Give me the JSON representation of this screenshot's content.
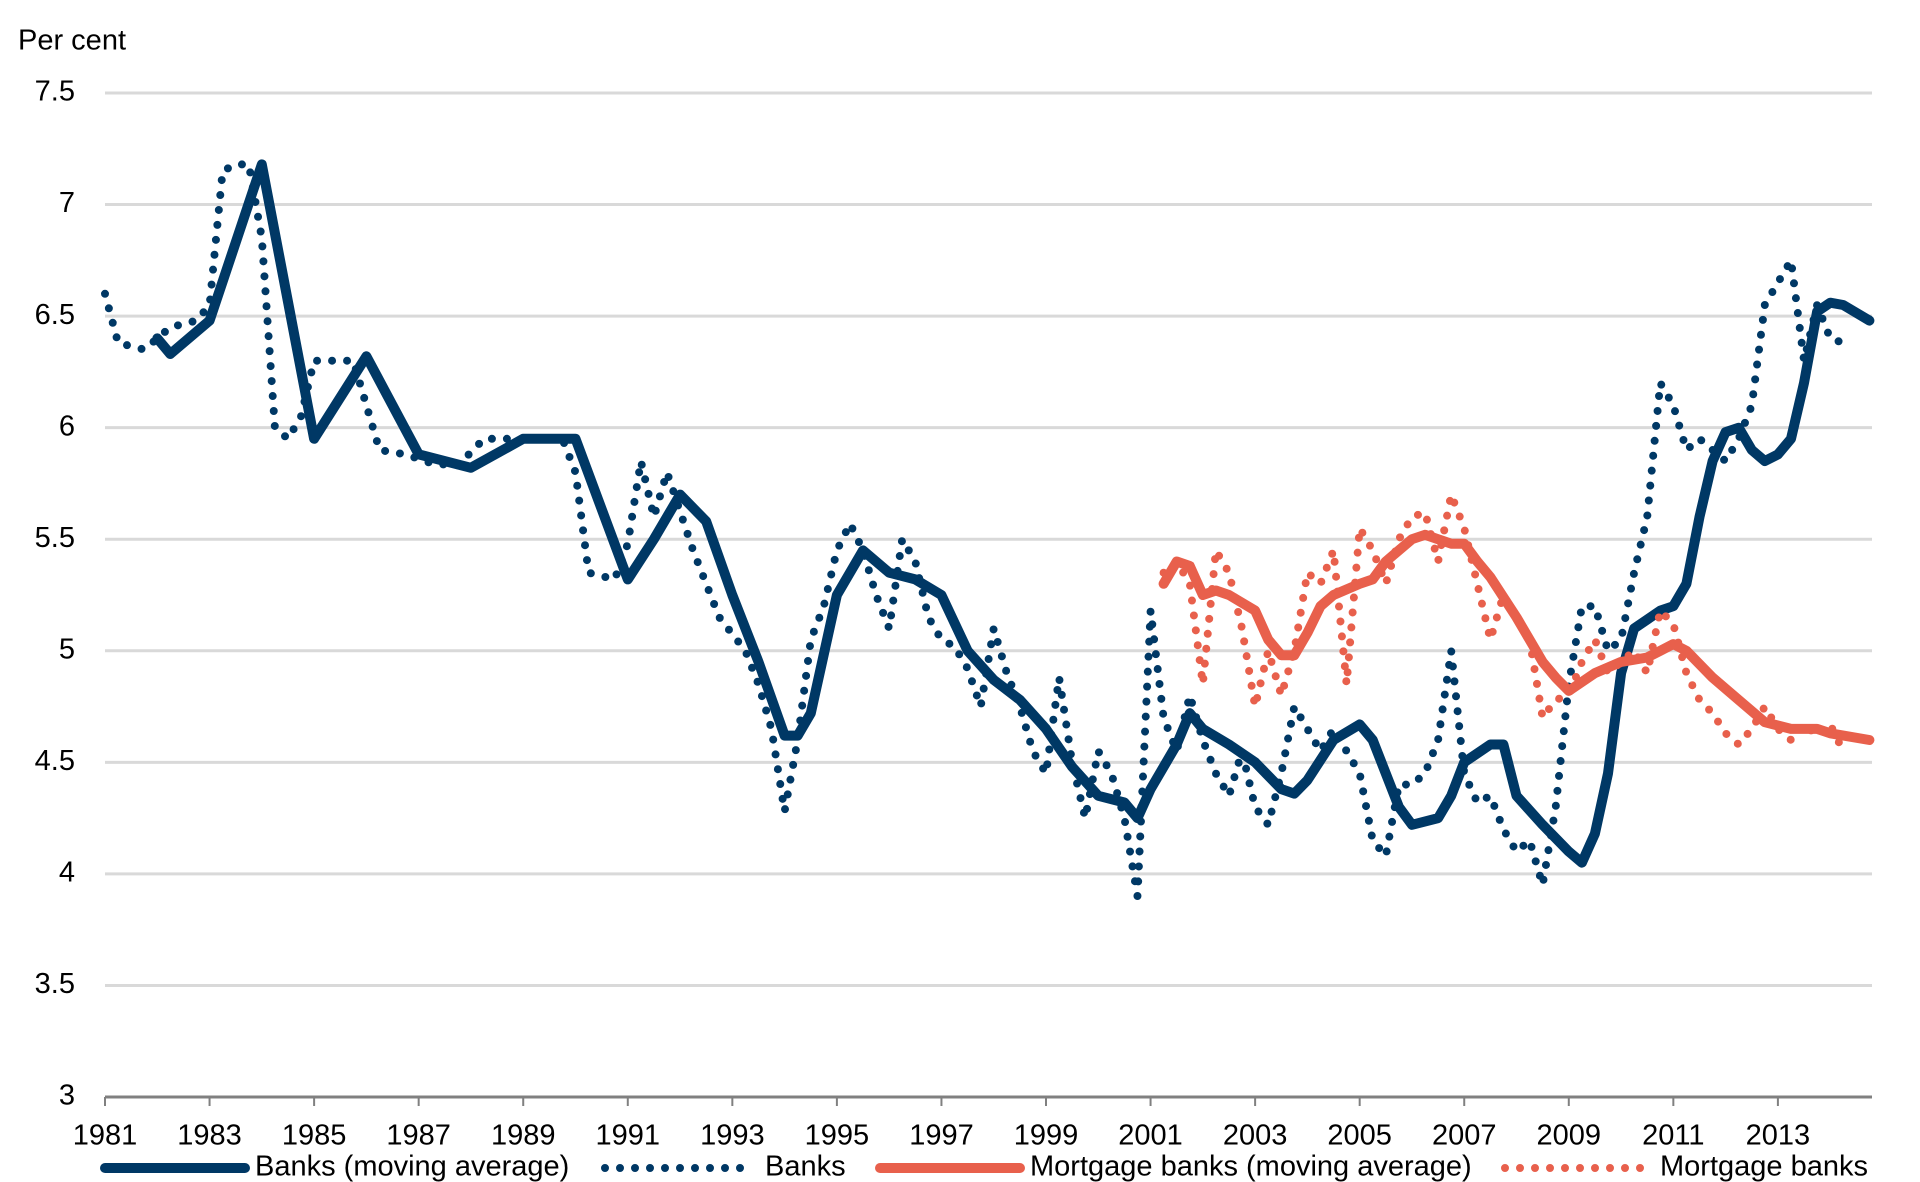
{
  "chart_data": {
    "type": "line",
    "y_axis_label": "Per cent",
    "xlim": [
      1981,
      2014.8
    ],
    "xticks": [
      1981,
      1983,
      1985,
      1987,
      1989,
      1991,
      1993,
      1995,
      1997,
      1999,
      2001,
      2003,
      2005,
      2007,
      2009,
      2011,
      2013
    ],
    "ylim": [
      3,
      7.5
    ],
    "yticks": [
      3,
      3.5,
      4,
      4.5,
      5,
      5.5,
      6,
      6.5,
      7,
      7.5
    ],
    "grid": true,
    "legend": "bottom",
    "series": [
      {
        "name": "Banks (moving average)",
        "color": "#003865",
        "line_style": "solid",
        "x": [
          1982,
          1982.25,
          1983,
          1984,
          1985,
          1986,
          1987,
          1988,
          1989,
          1990,
          1991,
          1991.5,
          1992,
          1992.5,
          1993,
          1993.5,
          1994,
          1994.25,
          1994.5,
          1995,
          1995.5,
          1996,
          1996.5,
          1997,
          1997.5,
          1998,
          1998.5,
          1999,
          1999.5,
          2000,
          2000.5,
          2000.75,
          2001,
          2001.5,
          2001.75,
          2002,
          2002.5,
          2003,
          2003.5,
          2003.75,
          2004,
          2004.5,
          2005,
          2005.25,
          2005.75,
          2006,
          2006.5,
          2006.75,
          2007,
          2007.5,
          2007.75,
          2008,
          2008.5,
          2009,
          2009.25,
          2009.5,
          2009.75,
          2010,
          2010.25,
          2010.75,
          2011,
          2011.25,
          2011.5,
          2011.75,
          2012,
          2012.25,
          2012.5,
          2012.75,
          2013,
          2013.25,
          2013.5,
          2013.75,
          2014,
          2014.25,
          2014.75
        ],
        "values": [
          6.4,
          6.33,
          6.48,
          7.18,
          5.95,
          6.32,
          5.88,
          5.82,
          5.95,
          5.95,
          5.32,
          5.5,
          5.7,
          5.58,
          5.25,
          4.95,
          4.62,
          4.62,
          4.72,
          5.25,
          5.45,
          5.35,
          5.32,
          5.25,
          5.0,
          4.87,
          4.78,
          4.65,
          4.48,
          4.35,
          4.32,
          4.25,
          4.38,
          4.58,
          4.72,
          4.65,
          4.58,
          4.5,
          4.38,
          4.36,
          4.42,
          4.6,
          4.67,
          4.6,
          4.3,
          4.22,
          4.25,
          4.35,
          4.5,
          4.58,
          4.58,
          4.35,
          4.22,
          4.1,
          4.05,
          4.18,
          4.45,
          4.9,
          5.1,
          5.18,
          5.2,
          5.3,
          5.6,
          5.85,
          5.98,
          6.0,
          5.9,
          5.85,
          5.88,
          5.95,
          6.2,
          6.52,
          6.56,
          6.55,
          6.48
        ]
      },
      {
        "name": "Banks",
        "color": "#003865",
        "line_style": "dotted",
        "x": [
          1981,
          1981.25,
          1981.75,
          1982.25,
          1982.75,
          1983,
          1983.25,
          1983.5,
          1983.75,
          1984,
          1984.25,
          1984.5,
          1984.75,
          1985,
          1985.25,
          1985.75,
          1986,
          1986.25,
          1986.75,
          1987.25,
          1987.75,
          1988.25,
          1989,
          1989.75,
          1990,
          1990.25,
          1990.75,
          1991,
          1991.25,
          1991.5,
          1991.75,
          1992.25,
          1992.75,
          1993.25,
          1993.5,
          1993.75,
          1994,
          1994.25,
          1994.5,
          1994.75,
          1995,
          1995.25,
          1995.5,
          1995.75,
          1996,
          1996.25,
          1996.5,
          1996.75,
          1997,
          1997.25,
          1997.5,
          1997.75,
          1998,
          1998.25,
          1998.5,
          1998.75,
          1999,
          1999.25,
          1999.5,
          1999.75,
          2000,
          2000.25,
          2000.5,
          2000.75,
          2001,
          2001.25,
          2001.5,
          2001.75,
          2002,
          2002.25,
          2002.5,
          2002.75,
          2003,
          2003.25,
          2003.5,
          2003.75,
          2004,
          2004.25,
          2004.5,
          2004.75,
          2005,
          2005.25,
          2005.5,
          2005.75,
          2006,
          2006.25,
          2006.5,
          2006.75,
          2007,
          2007.25,
          2007.5,
          2007.75,
          2008,
          2008.25,
          2008.5,
          2008.75,
          2009,
          2009.25,
          2009.5,
          2009.75,
          2010,
          2010.25,
          2010.5,
          2010.75,
          2011,
          2011.25,
          2011.5,
          2011.75,
          2012,
          2012.25,
          2012.5,
          2012.75,
          2013,
          2013.25,
          2013.5,
          2013.75,
          2014,
          2014.25
        ],
        "values": [
          6.6,
          6.38,
          6.35,
          6.45,
          6.48,
          6.55,
          7.15,
          7.18,
          7.18,
          6.85,
          6.0,
          5.95,
          6.05,
          6.3,
          6.3,
          6.3,
          6.1,
          5.9,
          5.88,
          5.84,
          5.83,
          5.95,
          5.95,
          5.95,
          5.8,
          5.35,
          5.32,
          5.48,
          5.85,
          5.6,
          5.8,
          5.45,
          5.15,
          5.0,
          4.85,
          4.65,
          4.28,
          4.6,
          5.05,
          5.2,
          5.45,
          5.57,
          5.45,
          5.25,
          5.1,
          5.5,
          5.4,
          5.15,
          5.05,
          5.02,
          4.92,
          4.75,
          5.1,
          4.9,
          4.75,
          4.55,
          4.45,
          4.88,
          4.5,
          4.25,
          4.55,
          4.45,
          4.25,
          3.9,
          5.18,
          4.7,
          4.55,
          4.8,
          4.6,
          4.45,
          4.35,
          4.55,
          4.3,
          4.22,
          4.45,
          4.75,
          4.65,
          4.55,
          4.65,
          4.55,
          4.45,
          4.15,
          4.08,
          4.4,
          4.4,
          4.45,
          4.6,
          5.0,
          4.45,
          4.32,
          4.35,
          4.2,
          4.1,
          4.15,
          3.95,
          4.3,
          4.85,
          5.2,
          5.2,
          5.0,
          5.05,
          5.35,
          5.6,
          6.2,
          6.1,
          5.9,
          5.95,
          5.9,
          5.85,
          5.95,
          6.1,
          6.55,
          6.65,
          6.75,
          6.3,
          6.55,
          6.4,
          6.38
        ]
      },
      {
        "name": "Mortgage banks (moving average)",
        "color": "#e8604c",
        "line_style": "solid",
        "x": [
          2001.25,
          2001.5,
          2001.75,
          2002,
          2002.25,
          2002.5,
          2003,
          2003.25,
          2003.5,
          2003.75,
          2004,
          2004.25,
          2004.5,
          2005,
          2005.25,
          2005.5,
          2006,
          2006.25,
          2006.5,
          2006.75,
          2007,
          2007.25,
          2007.5,
          2008,
          2008.5,
          2008.75,
          2009,
          2009.5,
          2010,
          2010.5,
          2010.75,
          2011,
          2011.25,
          2011.75,
          2012.25,
          2012.75,
          2013.25,
          2013.75,
          2014,
          2014.75
        ],
        "values": [
          5.3,
          5.4,
          5.38,
          5.25,
          5.27,
          5.25,
          5.18,
          5.05,
          4.98,
          4.98,
          5.08,
          5.2,
          5.25,
          5.3,
          5.32,
          5.4,
          5.5,
          5.52,
          5.5,
          5.48,
          5.48,
          5.4,
          5.33,
          5.15,
          4.95,
          4.88,
          4.82,
          4.9,
          4.95,
          4.97,
          5.0,
          5.03,
          5.0,
          4.88,
          4.78,
          4.68,
          4.65,
          4.65,
          4.63,
          4.6
        ]
      },
      {
        "name": "Mortgage banks",
        "color": "#e8604c",
        "line_style": "dotted",
        "x": [
          2001.25,
          2001.5,
          2001.75,
          2002,
          2002.25,
          2002.5,
          2002.75,
          2003,
          2003.25,
          2003.5,
          2003.75,
          2004,
          2004.25,
          2004.5,
          2004.75,
          2005,
          2005.25,
          2005.5,
          2005.75,
          2006,
          2006.25,
          2006.5,
          2006.75,
          2007,
          2007.25,
          2007.5,
          2007.75,
          2008,
          2008.25,
          2008.5,
          2008.75,
          2009,
          2009.25,
          2009.5,
          2009.75,
          2010,
          2010.25,
          2010.5,
          2010.75,
          2011,
          2011.25,
          2011.5,
          2011.75,
          2012,
          2012.25,
          2012.5,
          2012.75,
          2013,
          2013.25,
          2013.5,
          2013.75,
          2014,
          2014.25
        ],
        "values": [
          5.35,
          5.4,
          5.3,
          4.85,
          5.45,
          5.35,
          5.1,
          4.75,
          5.0,
          4.8,
          5.0,
          5.35,
          5.3,
          5.45,
          4.85,
          5.55,
          5.45,
          5.3,
          5.5,
          5.6,
          5.62,
          5.4,
          5.7,
          5.55,
          5.3,
          5.05,
          5.25,
          5.15,
          5.05,
          4.7,
          4.78,
          4.8,
          4.95,
          5.05,
          4.9,
          4.95,
          5.0,
          4.9,
          5.18,
          5.12,
          4.9,
          4.78,
          4.72,
          4.63,
          4.58,
          4.65,
          4.75,
          4.65,
          4.6,
          4.67,
          4.62,
          4.67,
          4.55
        ]
      }
    ]
  }
}
